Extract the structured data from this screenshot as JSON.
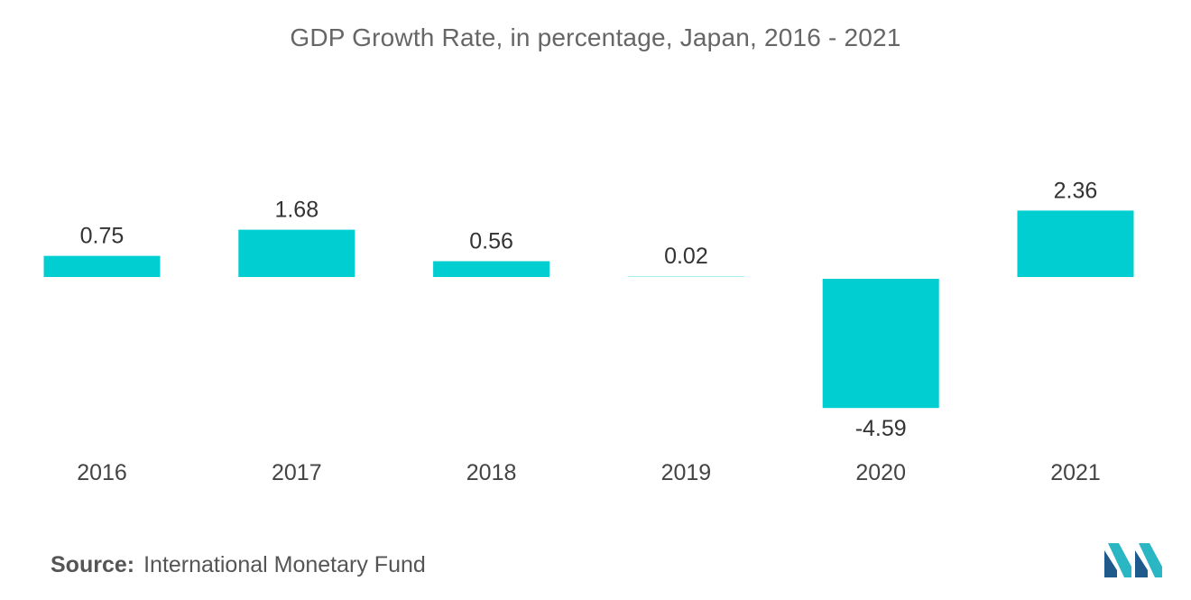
{
  "chart_data": {
    "type": "bar",
    "title": "GDP Growth Rate, in percentage, Japan, 2016 - 2021",
    "xlabel": "",
    "ylabel": "",
    "categories": [
      "2016",
      "2017",
      "2018",
      "2019",
      "2020",
      "2021"
    ],
    "values": [
      0.75,
      1.68,
      0.56,
      0.02,
      -4.59,
      2.36
    ],
    "value_labels": [
      "0.75",
      "1.68",
      "0.56",
      "0.02",
      "-4.59",
      "2.36"
    ],
    "bar_color": "#00CED1",
    "grid": false,
    "legend": "none"
  },
  "source": {
    "label": "Source:",
    "text": "International Monetary Fund"
  },
  "logo": {
    "icon": "mordor-intelligence-logo-icon",
    "colors": [
      "#1E5A8C",
      "#2AB7C3"
    ]
  }
}
